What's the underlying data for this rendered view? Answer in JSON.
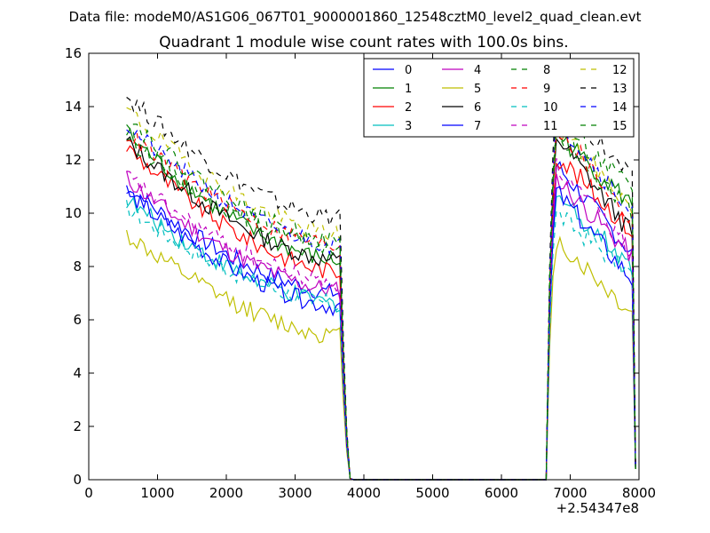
{
  "suptitle": "Data file: modeM0/AS1G06_067T01_9000001860_12548cztM0_level2_quad_clean.evt",
  "chart_data": {
    "type": "line",
    "title": "Quadrant 1 module wise count rates with 100.0s bins.",
    "xlabel": "",
    "ylabel": "",
    "xlim": [
      0,
      8000
    ],
    "ylim": [
      0,
      16
    ],
    "x_offset_label": "+2.54347e8",
    "xticks": [
      "0",
      "1000",
      "2000",
      "3000",
      "4000",
      "5000",
      "6000",
      "7000",
      "8000"
    ],
    "yticks": [
      "0",
      "2",
      "4",
      "6",
      "8",
      "10",
      "12",
      "14",
      "16"
    ],
    "grid": false,
    "legend_position": "top-right",
    "segments": [
      {
        "x_start": 550,
        "x_end": 3650,
        "step": 50
      },
      {
        "x_start": 3700,
        "x_end": 3850,
        "step": 50,
        "decline_to_zero": true
      },
      {
        "x_start": 3850,
        "x_end": 6650,
        "step": 50,
        "flat": 0
      },
      {
        "x_start": 6650,
        "x_end": 6850,
        "step": 50,
        "rise": true
      },
      {
        "x_start": 6850,
        "x_end": 7850,
        "step": 50
      },
      {
        "x_start": 7950,
        "x_end": 7950,
        "final": true
      }
    ],
    "series": [
      {
        "name": "0",
        "color": "#0000ff",
        "dash": "solid",
        "start": 11.0,
        "end": 7.0,
        "second_start": 11.8,
        "second_end": 8.5
      },
      {
        "name": "1",
        "color": "#008000",
        "dash": "solid",
        "start": 13.0,
        "end": 8.2,
        "second_start": 13.0,
        "second_end": 10.3
      },
      {
        "name": "2",
        "color": "#ff0000",
        "dash": "solid",
        "start": 12.5,
        "end": 7.8,
        "second_start": 12.2,
        "second_end": 9.3
      },
      {
        "name": "3",
        "color": "#00bfbf",
        "dash": "solid",
        "start": 10.5,
        "end": 6.6,
        "second_start": 10.7,
        "second_end": 8.0
      },
      {
        "name": "4",
        "color": "#bf00bf",
        "dash": "solid",
        "start": 11.3,
        "end": 7.1,
        "second_start": 11.3,
        "second_end": 8.4
      },
      {
        "name": "5",
        "color": "#bfbf00",
        "dash": "solid",
        "start": 9.2,
        "end": 5.4,
        "second_start": 9.0,
        "second_end": 6.2
      },
      {
        "name": "6",
        "color": "#000000",
        "dash": "solid",
        "start": 12.7,
        "end": 8.2,
        "second_start": 12.9,
        "second_end": 9.2
      },
      {
        "name": "7",
        "color": "#0000ff",
        "dash": "solid",
        "start": 10.8,
        "end": 6.5,
        "second_start": 10.8,
        "second_end": 7.5
      },
      {
        "name": "8",
        "color": "#008000",
        "dash": "dashed",
        "start": 12.9,
        "end": 8.7,
        "second_start": 13.0,
        "second_end": 10.0
      },
      {
        "name": "9",
        "color": "#ff0000",
        "dash": "dashed",
        "start": 13.0,
        "end": 8.8,
        "second_start": 13.3,
        "second_end": 9.7
      },
      {
        "name": "10",
        "color": "#00bfbf",
        "dash": "dashed",
        "start": 10.2,
        "end": 6.6,
        "second_start": 10.0,
        "second_end": 7.7
      },
      {
        "name": "11",
        "color": "#bf00bf",
        "dash": "dashed",
        "start": 11.4,
        "end": 7.4,
        "second_start": 11.7,
        "second_end": 8.6
      },
      {
        "name": "12",
        "color": "#bfbf00",
        "dash": "dashed",
        "start": 13.9,
        "end": 9.2,
        "second_start": 13.3,
        "second_end": 10.2
      },
      {
        "name": "13",
        "color": "#000000",
        "dash": "dashed",
        "start": 14.4,
        "end": 9.8,
        "second_start": 14.5,
        "second_end": 11.2
      },
      {
        "name": "14",
        "color": "#0000ff",
        "dash": "dashed",
        "start": 13.3,
        "end": 8.8,
        "second_start": 13.6,
        "second_end": 10.0
      },
      {
        "name": "15",
        "color": "#008000",
        "dash": "dashed",
        "start": 13.6,
        "end": 8.9,
        "second_start": 13.6,
        "second_end": 10.8
      }
    ]
  }
}
